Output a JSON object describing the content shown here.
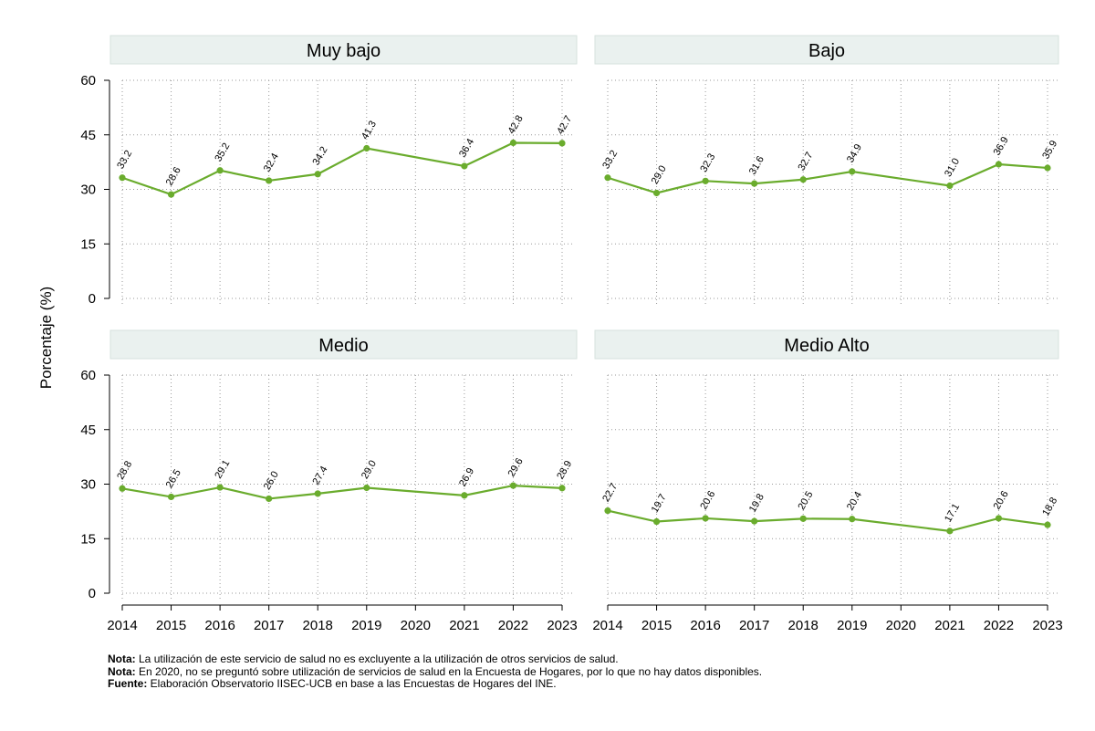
{
  "chart_data": {
    "type": "line",
    "ylabel": "Porcentaje (%)",
    "xlabel": "",
    "ylim": [
      0,
      60
    ],
    "yticks": [
      0,
      15,
      30,
      45,
      60
    ],
    "x_ticks": [
      "2014",
      "2015",
      "2016",
      "2017",
      "2018",
      "2019",
      "2020",
      "2021",
      "2022",
      "2023"
    ],
    "line_color": "#6aac2d",
    "grid": true,
    "panels": [
      {
        "title": "Muy bajo",
        "x": [
          "2014",
          "2015",
          "2016",
          "2017",
          "2018",
          "2019",
          "2021",
          "2022",
          "2023"
        ],
        "values": [
          33.2,
          28.6,
          35.2,
          32.4,
          34.2,
          41.3,
          36.4,
          42.8,
          42.7
        ],
        "labels": [
          "33.2",
          "28.6",
          "35.2",
          "32.4",
          "34.2",
          "41.3",
          "36.4",
          "42.8",
          "42.7"
        ]
      },
      {
        "title": "Bajo",
        "x": [
          "2014",
          "2015",
          "2016",
          "2017",
          "2018",
          "2019",
          "2021",
          "2022",
          "2023"
        ],
        "values": [
          33.2,
          29.0,
          32.3,
          31.6,
          32.7,
          34.9,
          31.0,
          36.9,
          35.9
        ],
        "labels": [
          "33.2",
          "29.0",
          "32.3",
          "31.6",
          "32.7",
          "34.9",
          "31.0",
          "36.9",
          "35.9"
        ]
      },
      {
        "title": "Medio",
        "x": [
          "2014",
          "2015",
          "2016",
          "2017",
          "2018",
          "2019",
          "2021",
          "2022",
          "2023"
        ],
        "values": [
          28.8,
          26.5,
          29.1,
          26.0,
          27.4,
          29.0,
          26.9,
          29.6,
          28.9
        ],
        "labels": [
          "28.8",
          "26.5",
          "29.1",
          "26.0",
          "27.4",
          "29.0",
          "26.9",
          "29.6",
          "28.9"
        ]
      },
      {
        "title": "Medio Alto",
        "x": [
          "2014",
          "2015",
          "2016",
          "2017",
          "2018",
          "2019",
          "2021",
          "2022",
          "2023"
        ],
        "values": [
          22.7,
          19.7,
          20.6,
          19.8,
          20.5,
          20.4,
          17.1,
          20.6,
          18.8
        ],
        "labels": [
          "22.7",
          "19.7",
          "20.6",
          "19.8",
          "20.5",
          "20.4",
          "17.1",
          "20.6",
          "18.8"
        ]
      }
    ]
  },
  "notes": [
    {
      "label": "Nota:",
      "text": " La utilización de este servicio de salud no es excluyente a la utilización de otros servicios de salud."
    },
    {
      "label": "Nota:",
      "text": " En 2020, no se preguntó sobre utilización de servicios de salud en la Encuesta de Hogares, por lo que no hay datos disponibles."
    },
    {
      "label": "Fuente:",
      "text": " Elaboración Observatorio IISEC-UCB en base a las Encuestas de Hogares del INE."
    }
  ]
}
